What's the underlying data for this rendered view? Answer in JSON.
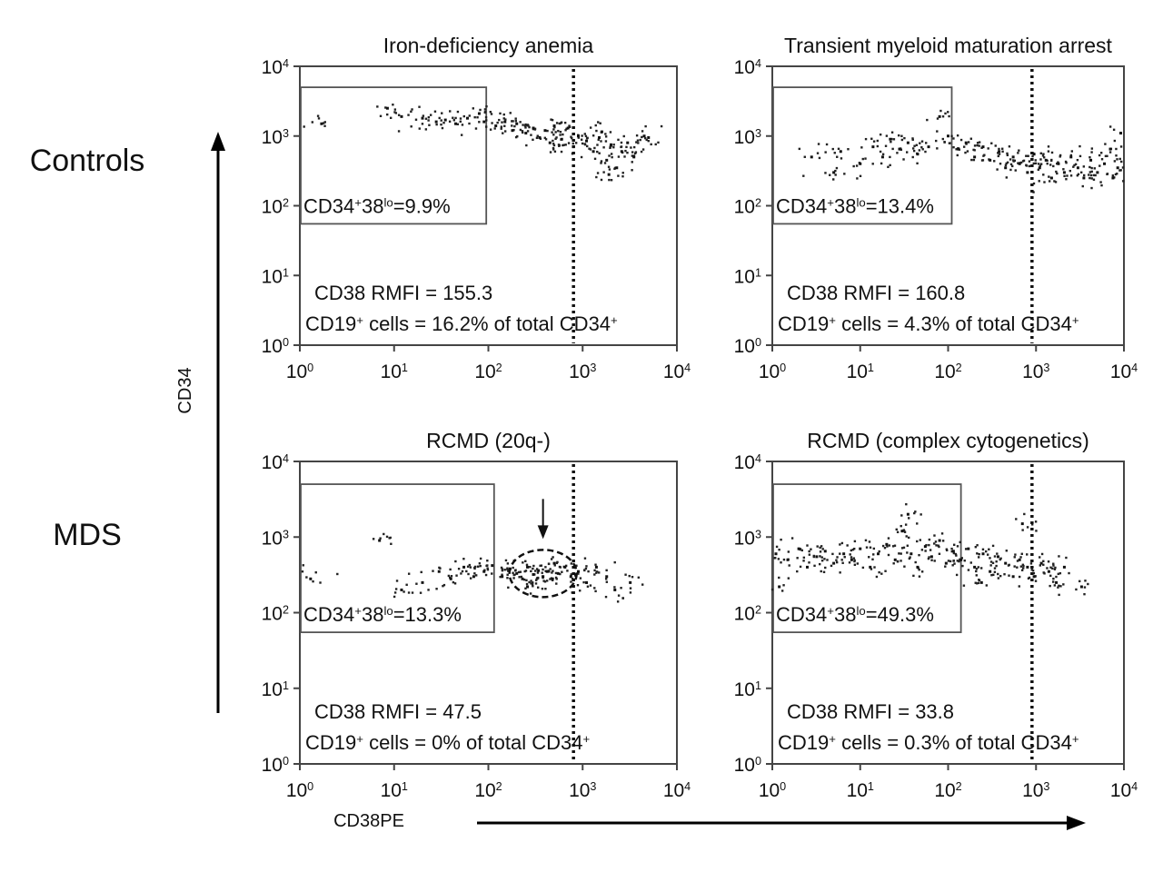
{
  "row_labels": [
    "Controls",
    "MDS"
  ],
  "y_axis_label": "CD34",
  "x_axis_label": "CD38PE",
  "chart_data": [
    {
      "type": "scatter",
      "title": "Iron-deficiency anemia",
      "xlabel": "CD38PE",
      "ylabel": "CD34",
      "xscale": "log",
      "yscale": "log",
      "xlim": [
        1,
        10000
      ],
      "ylim": [
        1,
        10000
      ],
      "x_ticks": [
        "10",
        "10",
        "10",
        "10",
        "10"
      ],
      "x_ticks_exp": [
        "0",
        "1",
        "2",
        "3",
        "4"
      ],
      "y_ticks": [
        "10",
        "10",
        "10",
        "10",
        "10"
      ],
      "y_ticks_exp": [
        "0",
        "1",
        "2",
        "3",
        "4"
      ],
      "gate": {
        "x": [
          1,
          95
        ],
        "y": [
          55,
          5000
        ],
        "label": "CD34",
        "label_sup1": "+",
        "label_mid": "38",
        "label_sup2": "lo",
        "label_value": "=9.9%"
      },
      "threshold_x": 800,
      "annotation1": "CD38 RMFI = 155.3",
      "annotation2_pre": "CD19",
      "annotation2_sup": "+",
      "annotation2_post": " cells = 16.2% of total CD34",
      "annotation2_end_sup": "+",
      "highlight": null,
      "events": [
        {
          "x": 1.7,
          "y": 1500
        },
        {
          "x": 8.5,
          "y": 2500
        },
        {
          "x": 12,
          "y": 1900
        },
        {
          "x": 20,
          "y": 1800
        },
        {
          "x": 28,
          "y": 1600
        },
        {
          "x": 35,
          "y": 1700
        },
        {
          "x": 45,
          "y": 1500
        },
        {
          "x": 60,
          "y": 1800
        },
        {
          "x": 80,
          "y": 2100
        },
        {
          "x": 90,
          "y": 1600
        },
        {
          "x": 120,
          "y": 1400
        },
        {
          "x": 150,
          "y": 1600
        },
        {
          "x": 180,
          "y": 1200
        },
        {
          "x": 200,
          "y": 1500
        },
        {
          "x": 250,
          "y": 1100
        },
        {
          "x": 300,
          "y": 1300
        },
        {
          "x": 350,
          "y": 950
        },
        {
          "x": 400,
          "y": 1200
        },
        {
          "x": 450,
          "y": 800
        },
        {
          "x": 500,
          "y": 1400
        },
        {
          "x": 600,
          "y": 900
        },
        {
          "x": 700,
          "y": 1300
        },
        {
          "x": 800,
          "y": 700
        },
        {
          "x": 900,
          "y": 1000
        },
        {
          "x": 1100,
          "y": 850
        },
        {
          "x": 1300,
          "y": 600
        },
        {
          "x": 1500,
          "y": 950
        },
        {
          "x": 1800,
          "y": 450
        },
        {
          "x": 2000,
          "y": 750
        },
        {
          "x": 2300,
          "y": 350
        },
        {
          "x": 2600,
          "y": 600
        },
        {
          "x": 3000,
          "y": 800
        },
        {
          "x": 3500,
          "y": 500
        },
        {
          "x": 4500,
          "y": 1000
        },
        {
          "x": 5000,
          "y": 950
        },
        {
          "x": 1900,
          "y": 280
        },
        {
          "x": 1600,
          "y": 1150
        }
      ]
    },
    {
      "type": "scatter",
      "title": "Transient myeloid maturation arrest",
      "xlabel": "CD38PE",
      "ylabel": "CD34",
      "xscale": "log",
      "yscale": "log",
      "xlim": [
        1,
        10000
      ],
      "ylim": [
        1,
        10000
      ],
      "x_ticks": [
        "10",
        "10",
        "10",
        "10",
        "10"
      ],
      "x_ticks_exp": [
        "0",
        "1",
        "2",
        "3",
        "4"
      ],
      "y_ticks": [
        "10",
        "10",
        "10",
        "10",
        "10"
      ],
      "y_ticks_exp": [
        "0",
        "1",
        "2",
        "3",
        "4"
      ],
      "gate": {
        "x": [
          1,
          110
        ],
        "y": [
          55,
          5000
        ],
        "label": "CD34",
        "label_sup1": "+",
        "label_mid": "38",
        "label_sup2": "lo",
        "label_value": "=13.4%"
      },
      "threshold_x": 900,
      "annotation1": "CD38 RMFI = 160.8",
      "annotation2_pre": "CD19",
      "annotation2_sup": "+",
      "annotation2_post": " cells = 4.3% of total CD34",
      "annotation2_end_sup": "+",
      "highlight": null,
      "events": [
        {
          "x": 2.8,
          "y": 500
        },
        {
          "x": 5,
          "y": 300
        },
        {
          "x": 6,
          "y": 600
        },
        {
          "x": 10,
          "y": 400
        },
        {
          "x": 14,
          "y": 700
        },
        {
          "x": 18,
          "y": 500
        },
        {
          "x": 22,
          "y": 900
        },
        {
          "x": 28,
          "y": 650
        },
        {
          "x": 35,
          "y": 800
        },
        {
          "x": 45,
          "y": 550
        },
        {
          "x": 60,
          "y": 700
        },
        {
          "x": 80,
          "y": 1900
        },
        {
          "x": 100,
          "y": 1000
        },
        {
          "x": 130,
          "y": 650
        },
        {
          "x": 160,
          "y": 800
        },
        {
          "x": 200,
          "y": 500
        },
        {
          "x": 250,
          "y": 700
        },
        {
          "x": 300,
          "y": 450
        },
        {
          "x": 380,
          "y": 600
        },
        {
          "x": 450,
          "y": 350
        },
        {
          "x": 550,
          "y": 500
        },
        {
          "x": 650,
          "y": 400
        },
        {
          "x": 800,
          "y": 300
        },
        {
          "x": 950,
          "y": 550
        },
        {
          "x": 1100,
          "y": 350
        },
        {
          "x": 1300,
          "y": 450
        },
        {
          "x": 1500,
          "y": 250
        },
        {
          "x": 1800,
          "y": 400
        },
        {
          "x": 2100,
          "y": 300
        },
        {
          "x": 2500,
          "y": 500
        },
        {
          "x": 3000,
          "y": 350
        },
        {
          "x": 3500,
          "y": 250
        },
        {
          "x": 4200,
          "y": 450
        },
        {
          "x": 5000,
          "y": 300
        },
        {
          "x": 6000,
          "y": 400
        },
        {
          "x": 7500,
          "y": 250
        },
        {
          "x": 8500,
          "y": 350
        },
        {
          "x": 9200,
          "y": 1100
        },
        {
          "x": 7000,
          "y": 650
        }
      ]
    },
    {
      "type": "scatter",
      "title": "RCMD (20q-)",
      "xlabel": "CD38PE",
      "ylabel": "CD34",
      "xscale": "log",
      "yscale": "log",
      "xlim": [
        1,
        10000
      ],
      "ylim": [
        1,
        10000
      ],
      "x_ticks": [
        "10",
        "10",
        "10",
        "10",
        "10"
      ],
      "x_ticks_exp": [
        "0",
        "1",
        "2",
        "3",
        "4"
      ],
      "y_ticks": [
        "10",
        "10",
        "10",
        "10",
        "10"
      ],
      "y_ticks_exp": [
        "0",
        "1",
        "2",
        "3",
        "4"
      ],
      "gate": {
        "x": [
          1,
          115
        ],
        "y": [
          55,
          5000
        ],
        "label": "CD34",
        "label_sup1": "+",
        "label_mid": "38",
        "label_sup2": "lo",
        "label_value": "=13.3%"
      },
      "threshold_x": 800,
      "annotation1": "CD38 RMFI = 47.5",
      "annotation2_pre": "CD19",
      "annotation2_sup": "+",
      "annotation2_post": " cells = 0% of total CD34",
      "annotation2_end_sup": "+",
      "highlight": {
        "center_x": 380,
        "center_y": 330,
        "arrow": true
      },
      "events": [
        {
          "x": 1.3,
          "y": 280
        },
        {
          "x": 7,
          "y": 900
        },
        {
          "x": 12,
          "y": 200
        },
        {
          "x": 20,
          "y": 250
        },
        {
          "x": 30,
          "y": 350
        },
        {
          "x": 40,
          "y": 280
        },
        {
          "x": 55,
          "y": 400
        },
        {
          "x": 70,
          "y": 300
        },
        {
          "x": 90,
          "y": 350
        },
        {
          "x": 110,
          "y": 420
        },
        {
          "x": 140,
          "y": 300
        },
        {
          "x": 170,
          "y": 380
        },
        {
          "x": 200,
          "y": 330
        },
        {
          "x": 230,
          "y": 280
        },
        {
          "x": 260,
          "y": 400
        },
        {
          "x": 300,
          "y": 320
        },
        {
          "x": 340,
          "y": 360
        },
        {
          "x": 380,
          "y": 300
        },
        {
          "x": 420,
          "y": 350
        },
        {
          "x": 480,
          "y": 280
        },
        {
          "x": 550,
          "y": 330
        },
        {
          "x": 650,
          "y": 400
        },
        {
          "x": 750,
          "y": 300
        },
        {
          "x": 900,
          "y": 350
        },
        {
          "x": 1100,
          "y": 250
        },
        {
          "x": 1400,
          "y": 400
        },
        {
          "x": 1800,
          "y": 300
        },
        {
          "x": 2200,
          "y": 200
        },
        {
          "x": 3200,
          "y": 250
        },
        {
          "x": 260,
          "y": 220
        },
        {
          "x": 500,
          "y": 450
        }
      ]
    },
    {
      "type": "scatter",
      "title": "RCMD (complex cytogenetics)",
      "xlabel": "CD38PE",
      "ylabel": "CD34",
      "xscale": "log",
      "yscale": "log",
      "xlim": [
        1,
        10000
      ],
      "ylim": [
        1,
        10000
      ],
      "x_ticks": [
        "10",
        "10",
        "10",
        "10",
        "10"
      ],
      "x_ticks_exp": [
        "0",
        "1",
        "2",
        "3",
        "4"
      ],
      "y_ticks": [
        "10",
        "10",
        "10",
        "10",
        "10"
      ],
      "y_ticks_exp": [
        "0",
        "1",
        "2",
        "3",
        "4"
      ],
      "gate": {
        "x": [
          1,
          140
        ],
        "y": [
          55,
          5000
        ],
        "label": "CD34",
        "label_sup1": "+",
        "label_mid": "38",
        "label_sup2": "lo",
        "label_value": "=49.3%"
      },
      "threshold_x": 900,
      "annotation1": "CD38 RMFI = 33.8",
      "annotation2_pre": "CD19",
      "annotation2_sup": "+",
      "annotation2_post": " cells = 0.3% of total CD34",
      "annotation2_end_sup": "+",
      "highlight": null,
      "events": [
        {
          "x": 1.1,
          "y": 600
        },
        {
          "x": 1.5,
          "y": 500
        },
        {
          "x": 2,
          "y": 700
        },
        {
          "x": 2.5,
          "y": 400
        },
        {
          "x": 3.2,
          "y": 550
        },
        {
          "x": 4,
          "y": 650
        },
        {
          "x": 5,
          "y": 450
        },
        {
          "x": 6.5,
          "y": 600
        },
        {
          "x": 8,
          "y": 500
        },
        {
          "x": 10,
          "y": 700
        },
        {
          "x": 13,
          "y": 400
        },
        {
          "x": 16,
          "y": 600
        },
        {
          "x": 20,
          "y": 800
        },
        {
          "x": 25,
          "y": 500
        },
        {
          "x": 30,
          "y": 1200
        },
        {
          "x": 38,
          "y": 600
        },
        {
          "x": 45,
          "y": 400
        },
        {
          "x": 55,
          "y": 750
        },
        {
          "x": 65,
          "y": 550
        },
        {
          "x": 80,
          "y": 900
        },
        {
          "x": 95,
          "y": 450
        },
        {
          "x": 115,
          "y": 650
        },
        {
          "x": 140,
          "y": 500
        },
        {
          "x": 170,
          "y": 700
        },
        {
          "x": 200,
          "y": 400
        },
        {
          "x": 250,
          "y": 600
        },
        {
          "x": 300,
          "y": 350
        },
        {
          "x": 370,
          "y": 550
        },
        {
          "x": 450,
          "y": 450
        },
        {
          "x": 550,
          "y": 300
        },
        {
          "x": 650,
          "y": 500
        },
        {
          "x": 800,
          "y": 400
        },
        {
          "x": 950,
          "y": 300
        },
        {
          "x": 1150,
          "y": 450
        },
        {
          "x": 1400,
          "y": 350
        },
        {
          "x": 1700,
          "y": 250
        },
        {
          "x": 2100,
          "y": 400
        },
        {
          "x": 3300,
          "y": 220
        },
        {
          "x": 700,
          "y": 1500
        },
        {
          "x": 35,
          "y": 2000
        },
        {
          "x": 1.2,
          "y": 220
        },
        {
          "x": 240,
          "y": 250
        }
      ]
    }
  ]
}
